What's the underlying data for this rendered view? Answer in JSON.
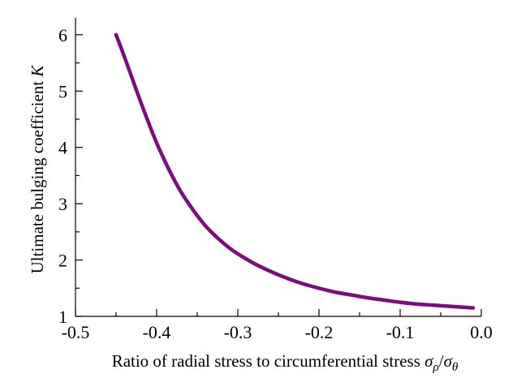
{
  "chart_data": {
    "type": "line",
    "xlabel": {
      "text": "Ratio of radial stress to circumferential stress ",
      "sigma_rho": "σ",
      "rho_sub": "ρ",
      "slash": "/",
      "sigma_theta": "σ",
      "theta_sub": "θ"
    },
    "ylabel": {
      "text": "Ultimate bulging coefficient ",
      "var": "K"
    },
    "xlim": [
      -0.5,
      0.0
    ],
    "ylim": [
      1,
      6.3
    ],
    "x_ticks": [
      -0.5,
      -0.4,
      -0.3,
      -0.2,
      -0.1,
      0.0
    ],
    "x_tick_labels": [
      "-0.5",
      "-0.4",
      "-0.3",
      "-0.2",
      "-0.1",
      "0.0"
    ],
    "y_ticks": [
      1,
      2,
      3,
      4,
      5,
      6
    ],
    "y_tick_labels": [
      "1",
      "2",
      "3",
      "4",
      "5",
      "6"
    ],
    "grid": false,
    "series": [
      {
        "color": "#7b0b7f",
        "x": [
          -0.45,
          -0.44,
          -0.43,
          -0.42,
          -0.41,
          -0.4,
          -0.39,
          -0.38,
          -0.37,
          -0.36,
          -0.35,
          -0.34,
          -0.33,
          -0.32,
          -0.31,
          -0.3,
          -0.28,
          -0.26,
          -0.24,
          -0.22,
          -0.2,
          -0.18,
          -0.16,
          -0.14,
          -0.12,
          -0.1,
          -0.08,
          -0.06,
          -0.04,
          -0.02,
          -0.01
        ],
        "y": [
          6.0,
          5.62,
          5.22,
          4.82,
          4.44,
          4.08,
          3.76,
          3.47,
          3.21,
          2.99,
          2.79,
          2.61,
          2.46,
          2.33,
          2.21,
          2.11,
          1.94,
          1.8,
          1.68,
          1.58,
          1.5,
          1.43,
          1.38,
          1.33,
          1.29,
          1.25,
          1.22,
          1.2,
          1.18,
          1.16,
          1.15
        ]
      }
    ]
  }
}
